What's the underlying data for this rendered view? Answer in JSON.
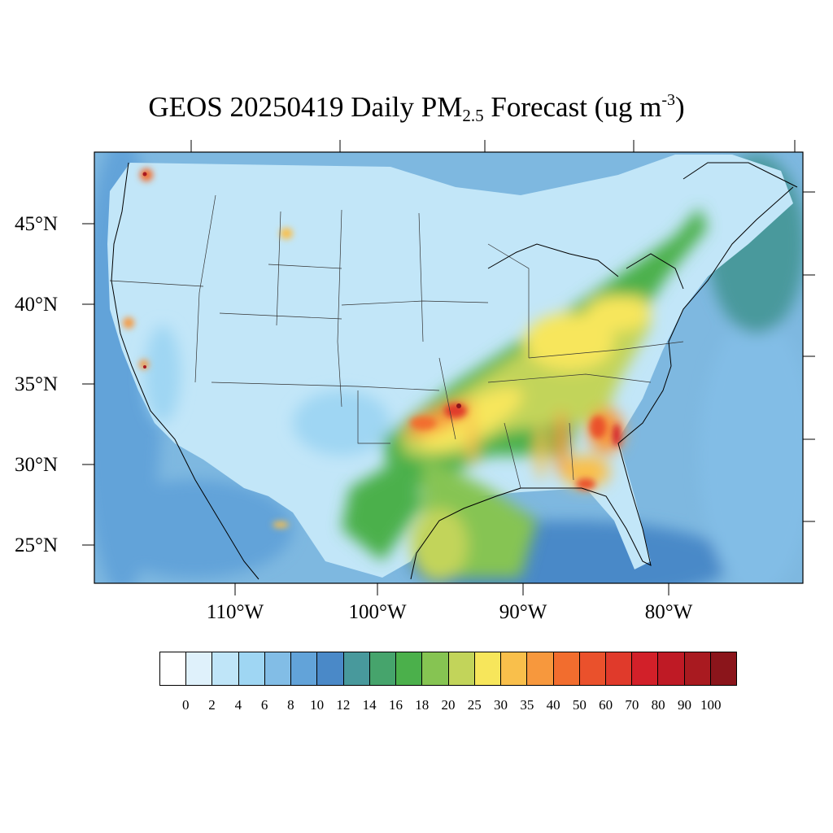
{
  "title": {
    "prefix": "GEOS 20250419 Daily PM",
    "subscript": "2.5",
    "middle": " Forecast (ug m",
    "superscript": "-3",
    "suffix": ")"
  },
  "map": {
    "lat_labels": [
      "45°N",
      "40°N",
      "35°N",
      "30°N",
      "25°N"
    ],
    "lon_labels": [
      "110°W",
      "100°W",
      "90°W",
      "80°W"
    ],
    "background_color": "#7eb8e0",
    "land_base_color": "#c2e6f8"
  },
  "colorbar": {
    "colors": [
      "#ffffff",
      "#dff1fb",
      "#bfe5f8",
      "#9fd6f3",
      "#82bde6",
      "#62a3d9",
      "#4a89c8",
      "#48999c",
      "#46a46c",
      "#4bb04b",
      "#86c452",
      "#c2d45a",
      "#f7e65b",
      "#f9bf4b",
      "#f7983d",
      "#f26d2e",
      "#ea512c",
      "#e03a2b",
      "#d22029",
      "#bf1a25",
      "#a91a20",
      "#8b151b"
    ],
    "ticks": [
      "0",
      "2",
      "4",
      "6",
      "8",
      "10",
      "12",
      "14",
      "16",
      "18",
      "20",
      "25",
      "30",
      "35",
      "40",
      "50",
      "60",
      "70",
      "80",
      "90",
      "100"
    ]
  }
}
